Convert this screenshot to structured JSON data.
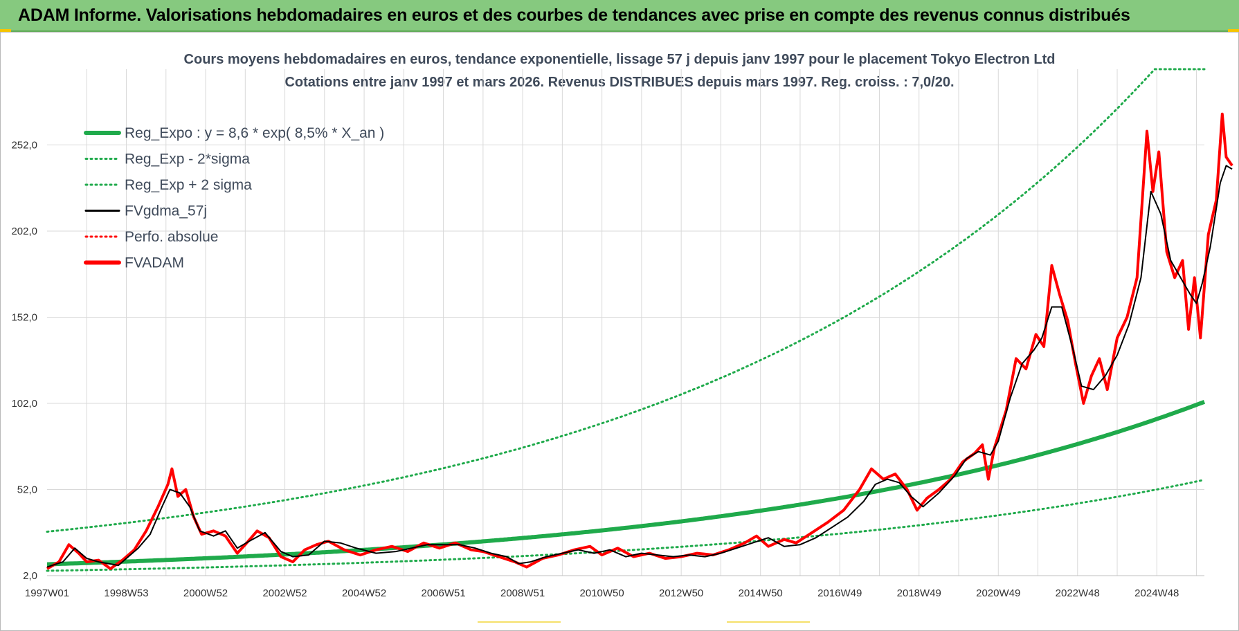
{
  "header": {
    "banner_title": "ADAM Informe. Valorisations hebdomadaires en euros et des courbes de tendances avec prise en compte des revenus connus distribués"
  },
  "colors": {
    "banner_bg": "#86c97f",
    "trend_green": "#1faa4b",
    "price_red": "#ff0000",
    "smooth_black": "#000000",
    "grid": "#d9d9d9"
  },
  "chart_data": {
    "type": "line",
    "title_line1": "Cours moyens hebdomadaires en euros, tendance exponentielle, lissage 57 j depuis janv 1997 pour le placement Tokyo Electron Ltd",
    "title_line2": "Cotations entre janv 1997 et mars 2026. Revenus DISTRIBUES depuis mars 1997. Reg. croiss. : 7,0/20.",
    "x_tick_labels": [
      "1997W01",
      "1998W53",
      "2000W52",
      "2002W52",
      "2004W52",
      "2006W51",
      "2008W51",
      "2010W50",
      "2012W50",
      "2014W50",
      "2016W49",
      "2018W49",
      "2020W49",
      "2022W48",
      "2024W48"
    ],
    "x_range": [
      1997.0,
      2026.2
    ],
    "y_tick_labels": [
      "2,0",
      "52,0",
      "102,0",
      "152,0",
      "202,0",
      "252,0"
    ],
    "y_ticks": [
      2,
      52,
      102,
      152,
      202,
      252
    ],
    "ylim": [
      2,
      296
    ],
    "grid": true,
    "legend_position": "top-left",
    "regression": {
      "a": 8.6,
      "rate": 0.085,
      "sigma_factor_minus": 0.56,
      "sigma_factor_plus": 3.2
    },
    "series": [
      {
        "name": "Reg_Expo : y = 8,6 * exp( 8,5% *  X_an )",
        "style": "thick-solid",
        "color": "#1faa4b"
      },
      {
        "name": "Reg_Exp - 2*sigma",
        "style": "dotted",
        "color": "#1faa4b"
      },
      {
        "name": "Reg_Exp + 2 sigma",
        "style": "dotted",
        "color": "#1faa4b"
      },
      {
        "name": "FVgdma_57j",
        "style": "solid",
        "color": "#000000",
        "points": [
          [
            1997.0,
            7
          ],
          [
            1997.4,
            10
          ],
          [
            1997.7,
            18
          ],
          [
            1998.0,
            12
          ],
          [
            1998.3,
            10
          ],
          [
            1998.8,
            8
          ],
          [
            1999.0,
            12
          ],
          [
            1999.3,
            18
          ],
          [
            1999.6,
            26
          ],
          [
            1999.9,
            42
          ],
          [
            2000.1,
            52
          ],
          [
            2000.35,
            50
          ],
          [
            2000.6,
            42
          ],
          [
            2000.85,
            28
          ],
          [
            2001.2,
            25
          ],
          [
            2001.5,
            28
          ],
          [
            2001.8,
            18
          ],
          [
            2002.1,
            22
          ],
          [
            2002.5,
            27
          ],
          [
            2002.9,
            16
          ],
          [
            2003.2,
            13
          ],
          [
            2003.6,
            14
          ],
          [
            2004.0,
            22
          ],
          [
            2004.4,
            21
          ],
          [
            2004.8,
            18
          ],
          [
            2005.3,
            15
          ],
          [
            2005.8,
            16
          ],
          [
            2006.2,
            18
          ],
          [
            2006.6,
            20
          ],
          [
            2007.0,
            20
          ],
          [
            2007.4,
            20
          ],
          [
            2007.8,
            18
          ],
          [
            2008.2,
            15
          ],
          [
            2008.6,
            13
          ],
          [
            2008.9,
            9
          ],
          [
            2009.2,
            10
          ],
          [
            2009.6,
            13
          ],
          [
            2010.0,
            15
          ],
          [
            2010.4,
            17
          ],
          [
            2010.8,
            15
          ],
          [
            2011.2,
            17
          ],
          [
            2011.6,
            13
          ],
          [
            2012.0,
            15
          ],
          [
            2012.4,
            14
          ],
          [
            2012.8,
            13
          ],
          [
            2013.2,
            14
          ],
          [
            2013.6,
            13
          ],
          [
            2014.0,
            15
          ],
          [
            2014.4,
            18
          ],
          [
            2014.8,
            21
          ],
          [
            2015.2,
            24
          ],
          [
            2015.6,
            19
          ],
          [
            2016.0,
            20
          ],
          [
            2016.4,
            24
          ],
          [
            2016.8,
            30
          ],
          [
            2017.2,
            36
          ],
          [
            2017.6,
            45
          ],
          [
            2017.9,
            55
          ],
          [
            2018.2,
            58
          ],
          [
            2018.5,
            56
          ],
          [
            2018.8,
            48
          ],
          [
            2019.1,
            42
          ],
          [
            2019.5,
            50
          ],
          [
            2019.9,
            60
          ],
          [
            2020.2,
            70
          ],
          [
            2020.5,
            74
          ],
          [
            2020.8,
            72
          ],
          [
            2021.0,
            80
          ],
          [
            2021.3,
            105
          ],
          [
            2021.6,
            125
          ],
          [
            2021.9,
            133
          ],
          [
            2022.1,
            140
          ],
          [
            2022.35,
            158
          ],
          [
            2022.6,
            158
          ],
          [
            2022.9,
            132
          ],
          [
            2023.1,
            112
          ],
          [
            2023.4,
            110
          ],
          [
            2023.7,
            118
          ],
          [
            2024.0,
            130
          ],
          [
            2024.3,
            148
          ],
          [
            2024.6,
            175
          ],
          [
            2024.85,
            225
          ],
          [
            2025.1,
            212
          ],
          [
            2025.35,
            185
          ],
          [
            2025.6,
            175
          ],
          [
            2025.85,
            165
          ],
          [
            2026.0,
            160
          ],
          [
            2026.15,
            172
          ],
          [
            2026.35,
            193
          ],
          [
            2026.6,
            230
          ],
          [
            2026.75,
            240
          ],
          [
            2026.9,
            238
          ]
        ]
      },
      {
        "name": "Perfo. absolue",
        "style": "dotted",
        "color": "#ff0000"
      },
      {
        "name": "FVADAM",
        "style": "thick-solid",
        "color": "#ff0000",
        "points": [
          [
            1997.0,
            6
          ],
          [
            1997.3,
            10
          ],
          [
            1997.55,
            20
          ],
          [
            1997.8,
            15
          ],
          [
            1998.0,
            10
          ],
          [
            1998.3,
            11
          ],
          [
            1998.6,
            6
          ],
          [
            1998.9,
            11
          ],
          [
            1999.2,
            17
          ],
          [
            1999.5,
            28
          ],
          [
            1999.8,
            42
          ],
          [
            2000.05,
            55
          ],
          [
            2000.15,
            64
          ],
          [
            2000.3,
            48
          ],
          [
            2000.5,
            52
          ],
          [
            2000.7,
            36
          ],
          [
            2000.9,
            26
          ],
          [
            2001.2,
            28
          ],
          [
            2001.5,
            25
          ],
          [
            2001.8,
            15
          ],
          [
            2002.0,
            20
          ],
          [
            2002.3,
            28
          ],
          [
            2002.6,
            24
          ],
          [
            2002.9,
            13
          ],
          [
            2003.2,
            10
          ],
          [
            2003.5,
            17
          ],
          [
            2003.8,
            20
          ],
          [
            2004.1,
            22
          ],
          [
            2004.5,
            17
          ],
          [
            2004.9,
            14
          ],
          [
            2005.3,
            17
          ],
          [
            2005.7,
            19
          ],
          [
            2006.1,
            16
          ],
          [
            2006.5,
            21
          ],
          [
            2006.9,
            18
          ],
          [
            2007.3,
            21
          ],
          [
            2007.7,
            17
          ],
          [
            2008.0,
            16
          ],
          [
            2008.4,
            13
          ],
          [
            2008.8,
            10
          ],
          [
            2009.1,
            7
          ],
          [
            2009.5,
            12
          ],
          [
            2009.9,
            14
          ],
          [
            2010.3,
            17
          ],
          [
            2010.7,
            19
          ],
          [
            2011.0,
            14
          ],
          [
            2011.4,
            18
          ],
          [
            2011.8,
            13
          ],
          [
            2012.2,
            15
          ],
          [
            2012.6,
            12
          ],
          [
            2013.0,
            13
          ],
          [
            2013.4,
            15
          ],
          [
            2013.8,
            14
          ],
          [
            2014.2,
            17
          ],
          [
            2014.6,
            21
          ],
          [
            2014.9,
            25
          ],
          [
            2015.2,
            19
          ],
          [
            2015.6,
            23
          ],
          [
            2015.9,
            21
          ],
          [
            2016.3,
            27
          ],
          [
            2016.7,
            33
          ],
          [
            2017.1,
            40
          ],
          [
            2017.5,
            52
          ],
          [
            2017.8,
            64
          ],
          [
            2018.1,
            58
          ],
          [
            2018.4,
            61
          ],
          [
            2018.7,
            52
          ],
          [
            2018.95,
            40
          ],
          [
            2019.2,
            47
          ],
          [
            2019.5,
            52
          ],
          [
            2019.8,
            58
          ],
          [
            2020.1,
            68
          ],
          [
            2020.4,
            73
          ],
          [
            2020.6,
            78
          ],
          [
            2020.75,
            58
          ],
          [
            2020.9,
            76
          ],
          [
            2021.2,
            98
          ],
          [
            2021.45,
            128
          ],
          [
            2021.7,
            122
          ],
          [
            2021.95,
            142
          ],
          [
            2022.15,
            135
          ],
          [
            2022.35,
            182
          ],
          [
            2022.55,
            165
          ],
          [
            2022.75,
            150
          ],
          [
            2022.95,
            125
          ],
          [
            2023.15,
            102
          ],
          [
            2023.35,
            118
          ],
          [
            2023.55,
            128
          ],
          [
            2023.75,
            110
          ],
          [
            2024.0,
            140
          ],
          [
            2024.25,
            152
          ],
          [
            2024.5,
            175
          ],
          [
            2024.75,
            260
          ],
          [
            2024.9,
            225
          ],
          [
            2025.05,
            248
          ],
          [
            2025.25,
            190
          ],
          [
            2025.45,
            175
          ],
          [
            2025.65,
            185
          ],
          [
            2025.8,
            145
          ],
          [
            2025.95,
            175
          ],
          [
            2026.1,
            140
          ],
          [
            2026.3,
            200
          ],
          [
            2026.5,
            220
          ],
          [
            2026.65,
            270
          ],
          [
            2026.75,
            245
          ],
          [
            2026.9,
            240
          ]
        ]
      }
    ]
  },
  "footer": {}
}
